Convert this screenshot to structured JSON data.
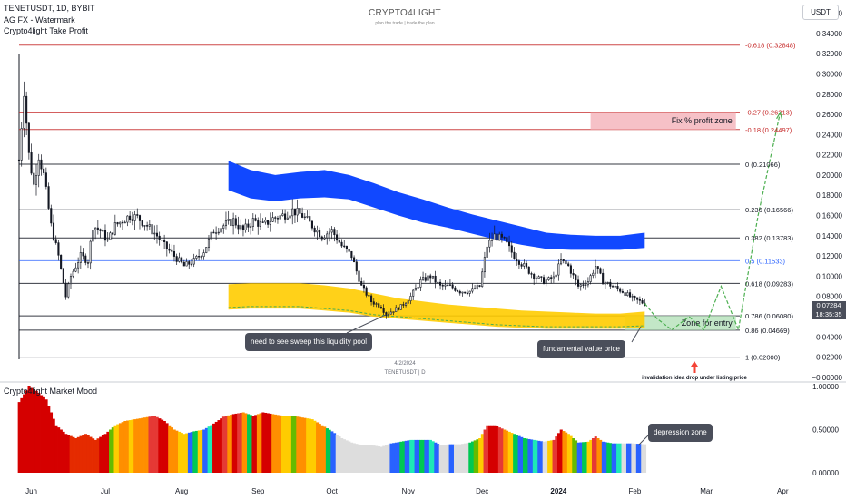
{
  "header": {
    "symbol_line": "TENETUSDT, 1D, BYBIT",
    "indicator1": "AG FX - Watermark",
    "indicator2": "Crypto4light Take Profit"
  },
  "watermark": {
    "title": "CRYPTO4LIGHT",
    "subtitle": "plan the trade | trade the plan"
  },
  "currency_button": "USDT",
  "price_tag": {
    "price": "0.07284",
    "countdown": "18:35:35"
  },
  "annotations": {
    "fix_profit_zone": "Fix % profit zone",
    "zone_for_entry": "Zone for entry",
    "sweep_callout": "need to see sweep this liquidity pool",
    "fundamental_callout": "fundamental value price",
    "invalidation": "invalidation idea drop under listing price",
    "date_label": "4/2/2024",
    "symbol_label": "TENETUSDT | D",
    "depression_callout": "depression zone"
  },
  "colors": {
    "candle": "#131722",
    "blue_band": "#1148ff",
    "yellow_band": "#ffcc00",
    "green_band": "#4caf50",
    "profit_zone": "#f4b6bd",
    "entry_zone": "#b9e3bd",
    "fib_black": "#131722",
    "fib_red": "#c62828",
    "fib_blue": "#2962ff",
    "projection": "#4caf50",
    "arrow": "#f44336"
  },
  "chart_data": [
    {
      "type": "candlestick",
      "title": "TENETUSDT, 1D, BYBIT",
      "ylim": [
        -0.001,
        0.365
      ],
      "y_ticks": [
        "0.36000",
        "0.34000",
        "0.32000",
        "0.30000",
        "0.28000",
        "0.26000",
        "0.24000",
        "0.22000",
        "0.20000",
        "0.18000",
        "0.16000",
        "0.14000",
        "0.12000",
        "0.10000",
        "0.08000",
        "0.06000",
        "0.04000",
        "0.02000",
        "−0.00000"
      ],
      "y_tick_values": [
        0.36,
        0.34,
        0.32,
        0.3,
        0.28,
        0.26,
        0.24,
        0.22,
        0.2,
        0.18,
        0.16,
        0.14,
        0.12,
        0.1,
        0.08,
        0.06,
        0.04,
        0.02,
        0.0
      ],
      "x_ticks": [
        "Jun",
        "Jul",
        "Aug",
        "Sep",
        "Oct",
        "Nov",
        "Dec",
        "2024",
        "Feb",
        "Mar",
        "Apr"
      ],
      "x_tick_days": [
        6,
        36,
        67,
        98,
        128,
        159,
        189,
        220,
        251,
        280,
        311
      ],
      "last_day": 255,
      "close_path": [
        [
          1,
          0.215
        ],
        [
          3,
          0.285
        ],
        [
          5,
          0.22
        ],
        [
          7,
          0.19
        ],
        [
          9,
          0.22
        ],
        [
          11,
          0.2
        ],
        [
          14,
          0.15
        ],
        [
          17,
          0.12
        ],
        [
          20,
          0.08
        ],
        [
          22,
          0.1
        ],
        [
          26,
          0.12
        ],
        [
          29,
          0.115
        ],
        [
          31,
          0.15
        ],
        [
          34,
          0.145
        ],
        [
          37,
          0.135
        ],
        [
          40,
          0.15
        ],
        [
          43,
          0.155
        ],
        [
          46,
          0.16
        ],
        [
          49,
          0.158
        ],
        [
          53,
          0.15
        ],
        [
          57,
          0.14
        ],
        [
          60,
          0.13
        ],
        [
          64,
          0.12
        ],
        [
          68,
          0.11
        ],
        [
          72,
          0.115
        ],
        [
          76,
          0.125
        ],
        [
          80,
          0.145
        ],
        [
          84,
          0.15
        ],
        [
          88,
          0.155
        ],
        [
          92,
          0.145
        ],
        [
          96,
          0.155
        ],
        [
          100,
          0.15
        ],
        [
          104,
          0.157
        ],
        [
          108,
          0.16
        ],
        [
          112,
          0.165
        ],
        [
          116,
          0.16
        ],
        [
          120,
          0.15
        ],
        [
          124,
          0.14
        ],
        [
          128,
          0.145
        ],
        [
          132,
          0.13
        ],
        [
          136,
          0.12
        ],
        [
          140,
          0.09
        ],
        [
          144,
          0.075
        ],
        [
          148,
          0.07
        ],
        [
          150,
          0.062
        ],
        [
          152,
          0.065
        ],
        [
          156,
          0.07
        ],
        [
          160,
          0.08
        ],
        [
          164,
          0.095
        ],
        [
          168,
          0.1
        ],
        [
          172,
          0.09
        ],
        [
          176,
          0.09
        ],
        [
          180,
          0.085
        ],
        [
          184,
          0.085
        ],
        [
          188,
          0.09
        ],
        [
          191,
          0.13
        ],
        [
          194,
          0.14
        ],
        [
          198,
          0.135
        ],
        [
          202,
          0.12
        ],
        [
          206,
          0.11
        ],
        [
          210,
          0.1
        ],
        [
          214,
          0.095
        ],
        [
          218,
          0.098
        ],
        [
          221,
          0.115
        ],
        [
          224,
          0.11
        ],
        [
          228,
          0.09
        ],
        [
          232,
          0.095
        ],
        [
          235,
          0.11
        ],
        [
          238,
          0.095
        ],
        [
          242,
          0.09
        ],
        [
          246,
          0.085
        ],
        [
          250,
          0.078
        ],
        [
          255,
          0.073
        ]
      ],
      "band_days": [
        86,
        95,
        105,
        115,
        125,
        135,
        145,
        155,
        165,
        175,
        185,
        195,
        205,
        215,
        225,
        235,
        245,
        255
      ],
      "blue_band_upper": [
        0.214,
        0.205,
        0.2,
        0.203,
        0.205,
        0.2,
        0.192,
        0.183,
        0.176,
        0.168,
        0.161,
        0.155,
        0.149,
        0.143,
        0.141,
        0.14,
        0.14,
        0.143
      ],
      "blue_band_lower": [
        0.185,
        0.177,
        0.174,
        0.177,
        0.178,
        0.176,
        0.168,
        0.16,
        0.153,
        0.148,
        0.142,
        0.136,
        0.131,
        0.127,
        0.126,
        0.126,
        0.126,
        0.128
      ],
      "yellow_band_upper": [
        0.092,
        0.093,
        0.093,
        0.093,
        0.091,
        0.088,
        0.083,
        0.078,
        0.075,
        0.072,
        0.07,
        0.068,
        0.066,
        0.065,
        0.064,
        0.063,
        0.063,
        0.065
      ],
      "yellow_band_lower": [
        0.067,
        0.068,
        0.068,
        0.068,
        0.066,
        0.064,
        0.06,
        0.058,
        0.056,
        0.054,
        0.052,
        0.05,
        0.049,
        0.048,
        0.048,
        0.048,
        0.048,
        0.049
      ],
      "fib_levels": [
        {
          "ratio": "-0.618",
          "price": 0.32848,
          "label": "-0.618 (0.32848)",
          "color": "#c62828"
        },
        {
          "ratio": "-0.27",
          "price": 0.26213,
          "label": "-0.27 (0.26213)",
          "color": "#c62828"
        },
        {
          "ratio": "-0.18",
          "price": 0.24497,
          "label": "-0.18 (0.24497)",
          "color": "#c62828"
        },
        {
          "ratio": "0",
          "price": 0.21066,
          "label": "0 (0.21066)",
          "color": "#131722"
        },
        {
          "ratio": "0.236",
          "price": 0.16566,
          "label": "0.236 (0.16566)",
          "color": "#131722"
        },
        {
          "ratio": "0.382",
          "price": 0.13783,
          "label": "0.382 (0.13783)",
          "color": "#131722"
        },
        {
          "ratio": "0.5",
          "price": 0.11533,
          "label": "0.5 (0.11533)",
          "color": "#2962ff"
        },
        {
          "ratio": "0.618",
          "price": 0.09283,
          "label": "0.618 (0.09283)",
          "color": "#131722"
        },
        {
          "ratio": "0.786",
          "price": 0.0608,
          "label": "0.786 (0.06080)",
          "color": "#131722"
        },
        {
          "ratio": "0.86",
          "price": 0.04669,
          "label": "0.86 (0.04669)",
          "color": "#131722"
        },
        {
          "ratio": "1",
          "price": 0.02,
          "label": "1 (0.02000)",
          "color": "#131722"
        }
      ],
      "profit_zone": {
        "price_low": 0.24497,
        "price_high": 0.26213,
        "day_start": 233,
        "day_end": 292
      },
      "entry_zone": {
        "price_low": 0.04669,
        "price_high": 0.0608,
        "day_start": 247,
        "day_end": 292
      },
      "projection_path": [
        [
          255,
          0.073
        ],
        [
          260,
          0.058
        ],
        [
          266,
          0.047
        ],
        [
          273,
          0.06
        ],
        [
          279,
          0.047
        ],
        [
          286,
          0.09
        ],
        [
          293,
          0.047
        ],
        [
          301,
          0.16
        ],
        [
          310,
          0.262
        ]
      ],
      "current_price": 0.07284
    },
    {
      "type": "area",
      "title": "Crypto4light Market Mood",
      "ylim": [
        0,
        1
      ],
      "y_ticks": [
        "1.00000",
        "0.50000",
        "0.00000"
      ],
      "y_tick_values": [
        1.0,
        0.5,
        0.0
      ],
      "mood_path": [
        [
          1,
          0.82
        ],
        [
          5,
          1.0
        ],
        [
          8,
          0.95
        ],
        [
          12,
          0.85
        ],
        [
          16,
          0.55
        ],
        [
          20,
          0.45
        ],
        [
          24,
          0.4
        ],
        [
          28,
          0.45
        ],
        [
          32,
          0.38
        ],
        [
          36,
          0.45
        ],
        [
          40,
          0.55
        ],
        [
          44,
          0.6
        ],
        [
          48,
          0.62
        ],
        [
          52,
          0.64
        ],
        [
          56,
          0.66
        ],
        [
          60,
          0.6
        ],
        [
          64,
          0.5
        ],
        [
          68,
          0.45
        ],
        [
          72,
          0.48
        ],
        [
          76,
          0.5
        ],
        [
          80,
          0.57
        ],
        [
          84,
          0.65
        ],
        [
          88,
          0.68
        ],
        [
          92,
          0.7
        ],
        [
          96,
          0.66
        ],
        [
          100,
          0.7
        ],
        [
          104,
          0.68
        ],
        [
          108,
          0.66
        ],
        [
          112,
          0.66
        ],
        [
          116,
          0.64
        ],
        [
          120,
          0.62
        ],
        [
          124,
          0.55
        ],
        [
          128,
          0.48
        ],
        [
          132,
          0.4
        ],
        [
          136,
          0.35
        ],
        [
          140,
          0.32
        ],
        [
          144,
          0.32
        ],
        [
          148,
          0.3
        ],
        [
          152,
          0.34
        ],
        [
          156,
          0.36
        ],
        [
          160,
          0.38
        ],
        [
          164,
          0.38
        ],
        [
          168,
          0.38
        ],
        [
          172,
          0.32
        ],
        [
          176,
          0.33
        ],
        [
          180,
          0.33
        ],
        [
          184,
          0.35
        ],
        [
          188,
          0.4
        ],
        [
          191,
          0.55
        ],
        [
          194,
          0.55
        ],
        [
          198,
          0.5
        ],
        [
          202,
          0.45
        ],
        [
          206,
          0.4
        ],
        [
          210,
          0.38
        ],
        [
          214,
          0.36
        ],
        [
          218,
          0.38
        ],
        [
          221,
          0.5
        ],
        [
          224,
          0.45
        ],
        [
          228,
          0.35
        ],
        [
          232,
          0.36
        ],
        [
          235,
          0.42
        ],
        [
          238,
          0.36
        ],
        [
          242,
          0.34
        ],
        [
          246,
          0.34
        ],
        [
          250,
          0.34
        ],
        [
          255,
          0.33
        ]
      ],
      "mood_colors": [
        [
          1,
          "#d50000"
        ],
        [
          14,
          "#d50000"
        ],
        [
          22,
          "#e52b00"
        ],
        [
          34,
          "#d50000"
        ],
        [
          38,
          "#66bb00"
        ],
        [
          40,
          "#ffcc00"
        ],
        [
          42,
          "#ff8f00"
        ],
        [
          46,
          "#ffcc00"
        ],
        [
          48,
          "#ff8f00"
        ],
        [
          54,
          "#e53935"
        ],
        [
          58,
          "#d50000"
        ],
        [
          62,
          "#ff8f00"
        ],
        [
          66,
          "#ffcc00"
        ],
        [
          70,
          "#2962ff"
        ],
        [
          72,
          "#00c853"
        ],
        [
          74,
          "#ffcc00"
        ],
        [
          76,
          "#2962ff"
        ],
        [
          78,
          "#1de9b6"
        ],
        [
          80,
          "#d50000"
        ],
        [
          84,
          "#e53935"
        ],
        [
          86,
          "#ff8f00"
        ],
        [
          88,
          "#d50000"
        ],
        [
          90,
          "#e53935"
        ],
        [
          92,
          "#ff8f00"
        ],
        [
          94,
          "#00c853"
        ],
        [
          96,
          "#d50000"
        ],
        [
          98,
          "#ff8f00"
        ],
        [
          100,
          "#d50000"
        ],
        [
          104,
          "#ff8f00"
        ],
        [
          108,
          "#ffcc00"
        ],
        [
          112,
          "#66bb00"
        ],
        [
          114,
          "#ff8f00"
        ],
        [
          118,
          "#ffcc00"
        ],
        [
          122,
          "#ff8f00"
        ],
        [
          126,
          "#00c853"
        ],
        [
          128,
          "#2962ff"
        ],
        [
          130,
          "#dddddd"
        ],
        [
          150,
          "#dddddd"
        ],
        [
          152,
          "#2962ff"
        ],
        [
          156,
          "#00c853"
        ],
        [
          158,
          "#2962ff"
        ],
        [
          160,
          "#1de9b6"
        ],
        [
          162,
          "#2962ff"
        ],
        [
          164,
          "#00c853"
        ],
        [
          166,
          "#2962ff"
        ],
        [
          168,
          "#1de9b6"
        ],
        [
          170,
          "#2962ff"
        ],
        [
          172,
          "#dddddd"
        ],
        [
          176,
          "#2962ff"
        ],
        [
          178,
          "#dddddd"
        ],
        [
          184,
          "#00c853"
        ],
        [
          186,
          "#66bb00"
        ],
        [
          188,
          "#ffcc00"
        ],
        [
          190,
          "#e53935"
        ],
        [
          192,
          "#d50000"
        ],
        [
          196,
          "#e53935"
        ],
        [
          198,
          "#ff8f00"
        ],
        [
          200,
          "#ffcc00"
        ],
        [
          202,
          "#00c853"
        ],
        [
          204,
          "#2962ff"
        ],
        [
          206,
          "#00c853"
        ],
        [
          208,
          "#2962ff"
        ],
        [
          210,
          "#1de9b6"
        ],
        [
          212,
          "#2962ff"
        ],
        [
          214,
          "#dddddd"
        ],
        [
          216,
          "#ffcc00"
        ],
        [
          218,
          "#e53935"
        ],
        [
          220,
          "#d50000"
        ],
        [
          222,
          "#ff8f00"
        ],
        [
          224,
          "#ffcc00"
        ],
        [
          226,
          "#66bb00"
        ],
        [
          228,
          "#2962ff"
        ],
        [
          230,
          "#00c853"
        ],
        [
          232,
          "#ffcc00"
        ],
        [
          234,
          "#e53935"
        ],
        [
          236,
          "#ff8f00"
        ],
        [
          238,
          "#2962ff"
        ],
        [
          240,
          "#00c853"
        ],
        [
          242,
          "#2962ff"
        ],
        [
          244,
          "#1de9b6"
        ],
        [
          246,
          "#dddddd"
        ],
        [
          248,
          "#2962ff"
        ],
        [
          250,
          "#dddddd"
        ],
        [
          252,
          "#2962ff"
        ],
        [
          254,
          "#dddddd"
        ]
      ]
    }
  ]
}
